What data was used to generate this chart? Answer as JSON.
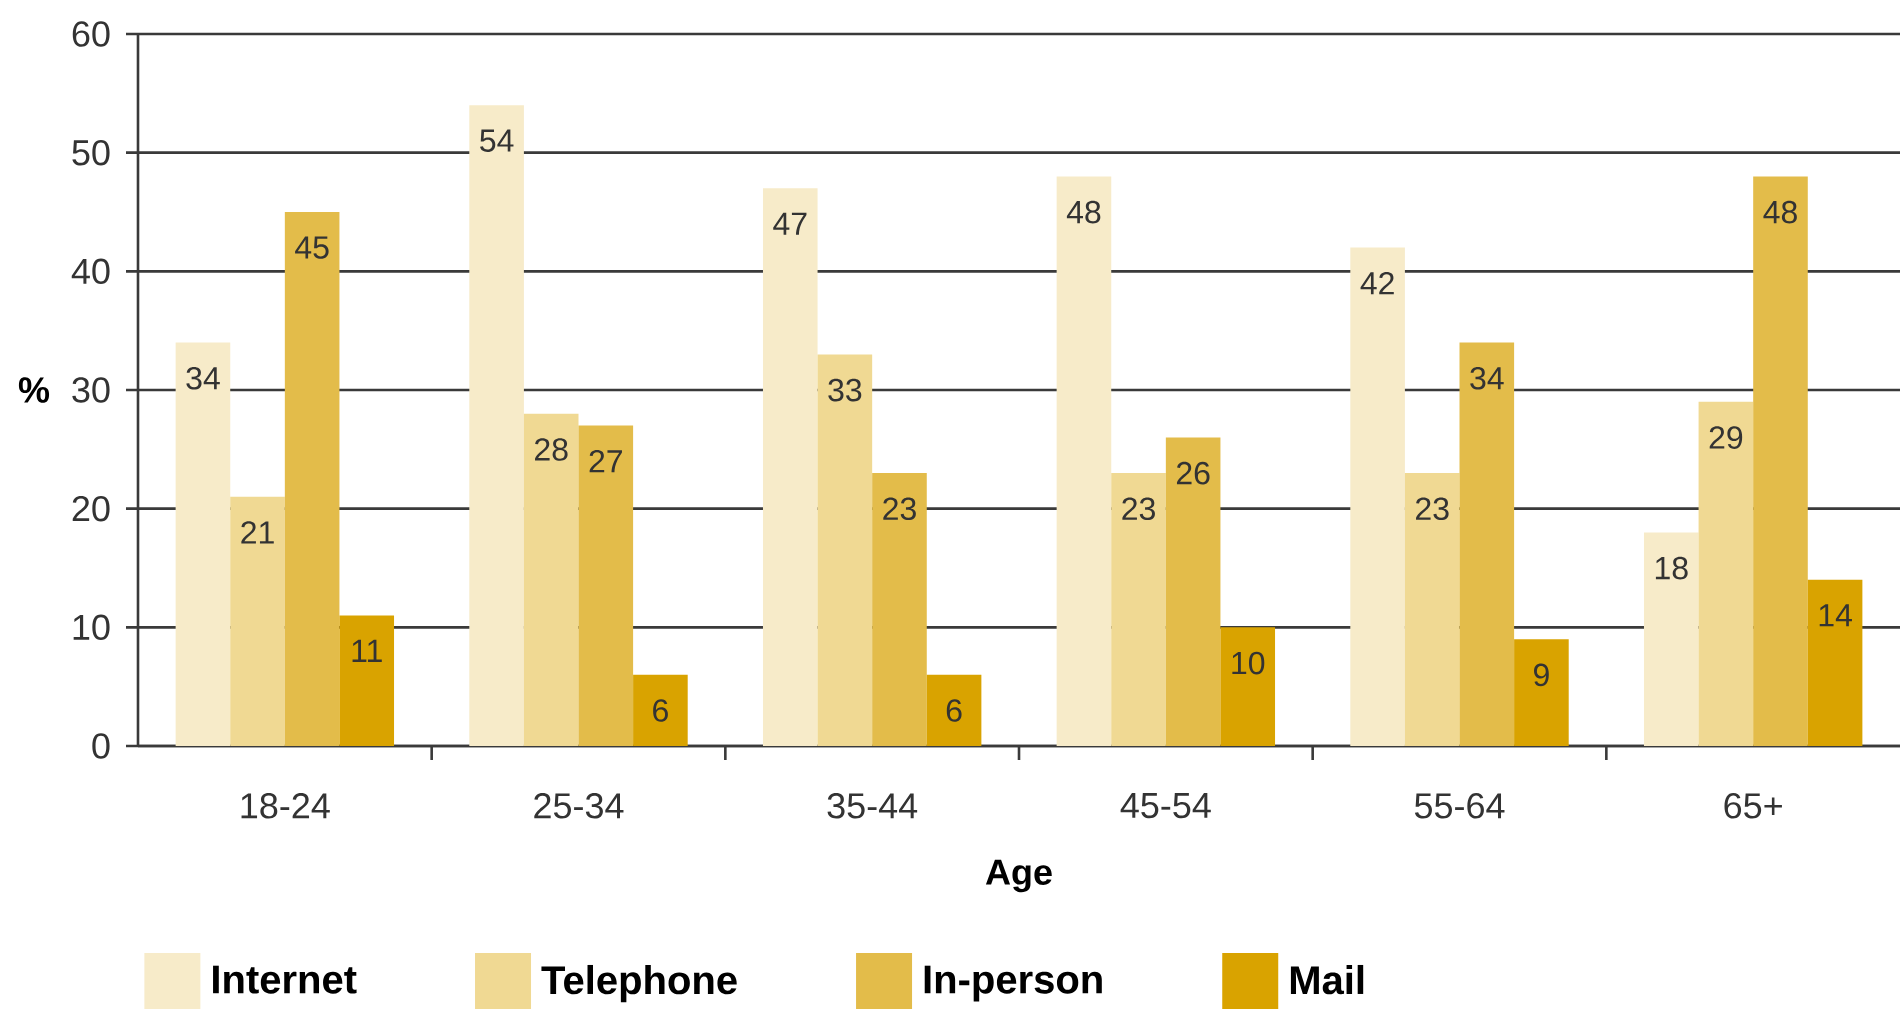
{
  "chart_data": {
    "type": "bar",
    "xlabel": "Age",
    "ylabel": "%",
    "categories": [
      "18-24",
      "25-34",
      "35-44",
      "45-54",
      "55-64",
      "65+"
    ],
    "series": [
      {
        "name": "Internet",
        "color": "#f7ebc9",
        "values": [
          34,
          54,
          47,
          48,
          42,
          18
        ]
      },
      {
        "name": "Telephone",
        "color": "#f0d993",
        "values": [
          21,
          28,
          33,
          23,
          23,
          29
        ]
      },
      {
        "name": "In-person",
        "color": "#e3bc4a",
        "values": [
          45,
          27,
          23,
          26,
          34,
          48
        ]
      },
      {
        "name": "Mail",
        "color": "#d9a300",
        "values": [
          11,
          6,
          6,
          10,
          9,
          14
        ]
      }
    ],
    "ylim": [
      0,
      60
    ],
    "yticks": [
      0,
      10,
      20,
      30,
      40,
      50,
      60
    ],
    "grid": "y",
    "legend": "bottom",
    "data_labels": true
  }
}
